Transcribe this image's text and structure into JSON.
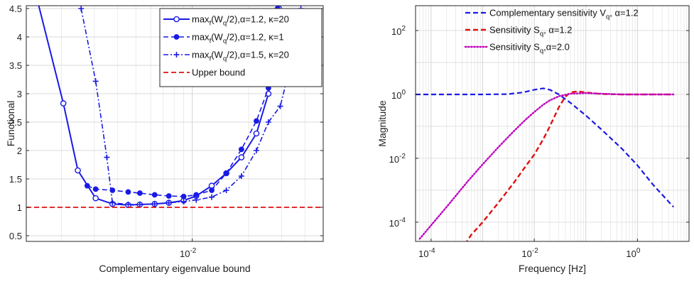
{
  "chart_data": [
    {
      "type": "line",
      "xlabel": "Complementary eigenvalue bound",
      "ylabel": "Functional",
      "xscale": "log",
      "xlim": [
        0.0013,
        0.05
      ],
      "ylim": [
        0.4,
        4.55
      ],
      "grid": true,
      "legend": "top-right",
      "x_ticks": [
        {
          "value": 0.01,
          "base": "10",
          "exp": "-2"
        }
      ],
      "y_ticks": [
        {
          "value": 0.5,
          "label": "0.5"
        },
        {
          "value": 1,
          "label": "1"
        },
        {
          "value": 1.5,
          "label": "1.5"
        },
        {
          "value": 2,
          "label": "2"
        },
        {
          "value": 2.5,
          "label": "2.5"
        },
        {
          "value": 3,
          "label": "3"
        },
        {
          "value": 3.5,
          "label": "3.5"
        },
        {
          "value": 4,
          "label": "4"
        },
        {
          "value": 4.5,
          "label": "4.5"
        }
      ],
      "series": [
        {
          "legend": {
            "main": "max",
            "sub1": "f",
            "mid": "(W",
            "sub2": "q",
            "rest": "/2),α=1.2, κ=20"
          },
          "color": "#1a1ae6",
          "dash": "solid",
          "marker": "open-circle",
          "width": 2,
          "x": [
            0.0014,
            0.00205,
            0.00245,
            0.00305,
            0.00375,
            0.00455,
            0.00525,
            0.0063,
            0.0075,
            0.009,
            0.0105,
            0.0127,
            0.0152,
            0.0183,
            0.022,
            0.0255,
            0.029
          ],
          "y": [
            5.0,
            2.83,
            1.65,
            1.16,
            1.06,
            1.04,
            1.05,
            1.06,
            1.08,
            1.12,
            1.2,
            1.38,
            1.6,
            1.88,
            2.3,
            3.0,
            4.5
          ]
        },
        {
          "legend": {
            "main": "max",
            "sub1": "f",
            "mid": "(W",
            "sub2": "q",
            "rest": "/2),α=1.2, κ=1"
          },
          "color": "#1a1ae6",
          "dash": "dashed",
          "marker": "filled-circle",
          "width": 1.6,
          "x": [
            0.00275,
            0.00305,
            0.00375,
            0.00455,
            0.00525,
            0.0063,
            0.0075,
            0.009,
            0.0105,
            0.0127,
            0.0152,
            0.0183,
            0.022,
            0.0255,
            0.0285
          ],
          "y": [
            1.38,
            1.32,
            1.3,
            1.27,
            1.25,
            1.22,
            1.2,
            1.19,
            1.22,
            1.3,
            1.6,
            2.02,
            2.52,
            3.1,
            4.5
          ]
        },
        {
          "legend": {
            "main": "max",
            "sub1": "f",
            "mid": "(W",
            "sub2": "q",
            "rest": "/2),α=1.5, κ=20"
          },
          "color": "#1a1ae6",
          "dash": "dashdot",
          "marker": "plus",
          "width": 1.6,
          "x": [
            0.00255,
            0.00305,
            0.0035,
            0.00375,
            0.00455,
            0.00525,
            0.0063,
            0.0075,
            0.009,
            0.0105,
            0.0127,
            0.0152,
            0.0183,
            0.022,
            0.0255,
            0.0295,
            0.034,
            0.038
          ],
          "y": [
            4.5,
            3.22,
            1.88,
            1.08,
            1.05,
            1.05,
            1.06,
            1.08,
            1.1,
            1.13,
            1.18,
            1.3,
            1.55,
            2.0,
            2.5,
            2.78,
            3.6,
            4.5
          ]
        },
        {
          "legend": {
            "main": "Upper bound"
          },
          "color": "#e01010",
          "dash": "dashed",
          "marker": "none",
          "width": 1.8,
          "x": [
            0.0013,
            0.05
          ],
          "y": [
            1,
            1
          ]
        }
      ]
    },
    {
      "type": "line",
      "xlabel": "Frequency [Hz]",
      "ylabel": "Magnitude",
      "xscale": "log",
      "yscale": "log",
      "xlim": [
        5e-05,
        10
      ],
      "ylim": [
        2.5e-05,
        600
      ],
      "grid": true,
      "legend": "top-right",
      "x_ticks": [
        {
          "value": 0.0001,
          "base": "10",
          "exp": "-4"
        },
        {
          "value": 0.01,
          "base": "10",
          "exp": "-2"
        },
        {
          "value": 1,
          "base": "10",
          "exp": "0"
        }
      ],
      "y_ticks": [
        {
          "value": 0.0001,
          "base": "10",
          "exp": "-4"
        },
        {
          "value": 0.01,
          "base": "10",
          "exp": "-2"
        },
        {
          "value": 1,
          "base": "10",
          "exp": "0"
        },
        {
          "value": 100,
          "base": "10",
          "exp": "2"
        }
      ],
      "series": [
        {
          "legend": {
            "main": "Complementary sensitivity V",
            "sub1": "q",
            "rest": ", α=1.2"
          },
          "color": "#1a1ae6",
          "dash": "dashed",
          "width": 2.2,
          "x": [
            5e-05,
            0.0001,
            0.001,
            0.003,
            0.006,
            0.01,
            0.015,
            0.02,
            0.03,
            0.05,
            0.1,
            0.2,
            0.5,
            1,
            2,
            5
          ],
          "y": [
            1,
            1,
            1,
            1.02,
            1.15,
            1.4,
            1.55,
            1.4,
            1.0,
            0.55,
            0.22,
            0.08,
            0.02,
            0.006,
            0.0015,
            0.0003
          ]
        },
        {
          "legend": {
            "main": "Sensitivity S",
            "sub1": "q",
            "rest": ", α=1.2"
          },
          "color": "#e01010",
          "dash": "dashed",
          "width": 2.4,
          "x": [
            0.00045,
            0.0006,
            0.001,
            0.002,
            0.004,
            0.007,
            0.01,
            0.015,
            0.02,
            0.03,
            0.04,
            0.05,
            0.07,
            0.1,
            0.2,
            0.5,
            1,
            2,
            5
          ],
          "y": [
            2e-05,
            4e-05,
            0.0001,
            0.0004,
            0.0017,
            0.006,
            0.013,
            0.04,
            0.1,
            0.4,
            0.85,
            1.15,
            1.25,
            1.15,
            1.03,
            1,
            1,
            1,
            1
          ]
        },
        {
          "legend": {
            "main": "Sensitivity S",
            "sub1": "q",
            "rest": ",α=2.0"
          },
          "color": "#c000c0",
          "dash": "dotted",
          "width": 2.4,
          "x": [
            6e-05,
            0.0001,
            0.0002,
            0.0005,
            0.001,
            0.002,
            0.004,
            0.007,
            0.01,
            0.015,
            0.02,
            0.03,
            0.05,
            0.1,
            0.2,
            0.5,
            1,
            5
          ],
          "y": [
            3e-05,
            8e-05,
            0.0003,
            0.0018,
            0.0065,
            0.022,
            0.07,
            0.17,
            0.28,
            0.48,
            0.65,
            0.88,
            1.05,
            1.1,
            1.05,
            1,
            1,
            1
          ]
        }
      ]
    }
  ]
}
